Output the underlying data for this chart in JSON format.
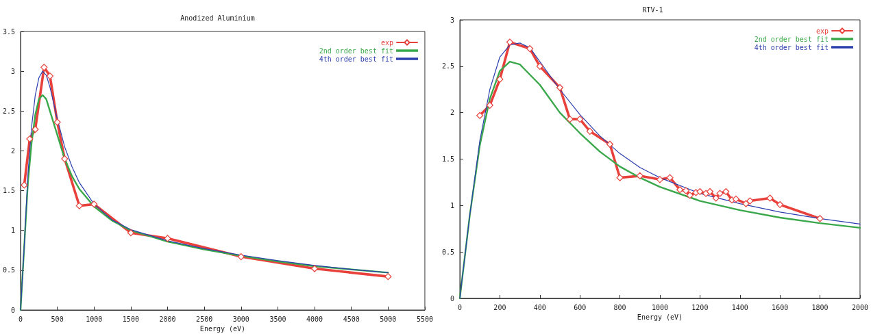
{
  "chart_data": [
    {
      "type": "line",
      "title": "Anodized Aluminium",
      "xlabel": "Energy (eV)",
      "xlim": [
        0,
        5500
      ],
      "xticks": [
        0,
        500,
        1000,
        1500,
        2000,
        2500,
        3000,
        3500,
        4000,
        4500,
        5000,
        5500
      ],
      "ylim": [
        0,
        3.5
      ],
      "yticks": [
        0,
        0.5,
        1,
        1.5,
        2,
        2.5,
        3,
        3.5
      ],
      "grid": false,
      "legend": "top right",
      "line_style": "solid",
      "series": [
        {
          "name": "exp",
          "color": "#e8413c",
          "marker": "diamond",
          "x": [
            50,
            125,
            200,
            320,
            400,
            500,
            600,
            800,
            1000,
            1500,
            2000,
            3000,
            4000,
            5000
          ],
          "values": [
            1.57,
            2.15,
            2.27,
            3.05,
            2.94,
            2.36,
            1.9,
            1.31,
            1.33,
            0.97,
            0.9,
            0.67,
            0.52,
            0.42
          ]
        },
        {
          "name": "2nd order best fit",
          "color": "#3aa84a",
          "marker": "none",
          "x": [
            0,
            50,
            100,
            150,
            200,
            250,
            300,
            350,
            400,
            500,
            600,
            700,
            800,
            1000,
            1250,
            1500,
            2000,
            2500,
            3000,
            3500,
            4000,
            4500,
            5000
          ],
          "values": [
            0,
            0.8,
            1.6,
            2.1,
            2.45,
            2.65,
            2.7,
            2.65,
            2.5,
            2.2,
            1.9,
            1.68,
            1.52,
            1.3,
            1.12,
            1,
            0.86,
            0.76,
            0.68,
            0.61,
            0.55,
            0.51,
            0.47
          ]
        },
        {
          "name": "4th order best fit",
          "color": "#2b3fae",
          "marker": "none",
          "x": [
            0,
            50,
            100,
            150,
            200,
            250,
            300,
            350,
            400,
            500,
            600,
            700,
            800,
            1000,
            1250,
            1500,
            2000,
            2500,
            3000,
            3500,
            4000,
            4500,
            5000
          ],
          "values": [
            0,
            0.8,
            1.7,
            2.3,
            2.7,
            2.92,
            3,
            2.95,
            2.8,
            2.4,
            2.05,
            1.8,
            1.6,
            1.33,
            1.13,
            1.01,
            0.87,
            0.77,
            0.69,
            0.62,
            0.56,
            0.51,
            0.47
          ]
        }
      ]
    },
    {
      "type": "line",
      "title": "RTV-1",
      "xlabel": "Energy (eV)",
      "xlim": [
        0,
        2000
      ],
      "xticks": [
        0,
        200,
        400,
        600,
        800,
        1000,
        1200,
        1400,
        1600,
        1800,
        2000
      ],
      "ylim": [
        0,
        3
      ],
      "yticks": [
        0,
        0.5,
        1,
        1.5,
        2,
        2.5,
        3
      ],
      "grid": false,
      "legend": "top right",
      "line_style": "solid",
      "series": [
        {
          "name": "exp",
          "color": "#e8413c",
          "marker": "diamond",
          "x": [
            100,
            150,
            200,
            250,
            350,
            400,
            500,
            550,
            600,
            650,
            750,
            800,
            900,
            1000,
            1050,
            1100,
            1130,
            1150,
            1180,
            1200,
            1230,
            1250,
            1280,
            1300,
            1330,
            1360,
            1380,
            1430,
            1450,
            1550,
            1600,
            1800
          ],
          "values": [
            1.97,
            2.08,
            2.36,
            2.76,
            2.69,
            2.5,
            2.27,
            1.93,
            1.93,
            1.8,
            1.66,
            1.3,
            1.32,
            1.28,
            1.3,
            1.17,
            1.16,
            1.11,
            1.14,
            1.15,
            1.13,
            1.15,
            1.08,
            1.13,
            1.15,
            1.06,
            1.07,
            1.02,
            1.05,
            1.08,
            1.01,
            0.86
          ]
        },
        {
          "name": "2nd order best fit",
          "color": "#3aa84a",
          "marker": "none",
          "x": [
            0,
            50,
            100,
            150,
            200,
            250,
            300,
            400,
            500,
            600,
            700,
            800,
            900,
            1000,
            1200,
            1400,
            1600,
            1800,
            2000
          ],
          "values": [
            0,
            0.9,
            1.65,
            2.15,
            2.45,
            2.55,
            2.52,
            2.3,
            2,
            1.78,
            1.58,
            1.42,
            1.3,
            1.2,
            1.05,
            0.95,
            0.87,
            0.81,
            0.76
          ]
        },
        {
          "name": "4th order best fit",
          "color": "#2b3fae",
          "marker": "none",
          "x": [
            0,
            50,
            100,
            150,
            200,
            250,
            300,
            350,
            400,
            500,
            600,
            700,
            800,
            900,
            1000,
            1200,
            1400,
            1600,
            1800,
            2000
          ],
          "values": [
            0,
            0.9,
            1.7,
            2.25,
            2.6,
            2.73,
            2.75,
            2.7,
            2.55,
            2.25,
            1.98,
            1.75,
            1.56,
            1.41,
            1.3,
            1.13,
            1.02,
            0.93,
            0.86,
            0.8
          ]
        }
      ]
    }
  ]
}
